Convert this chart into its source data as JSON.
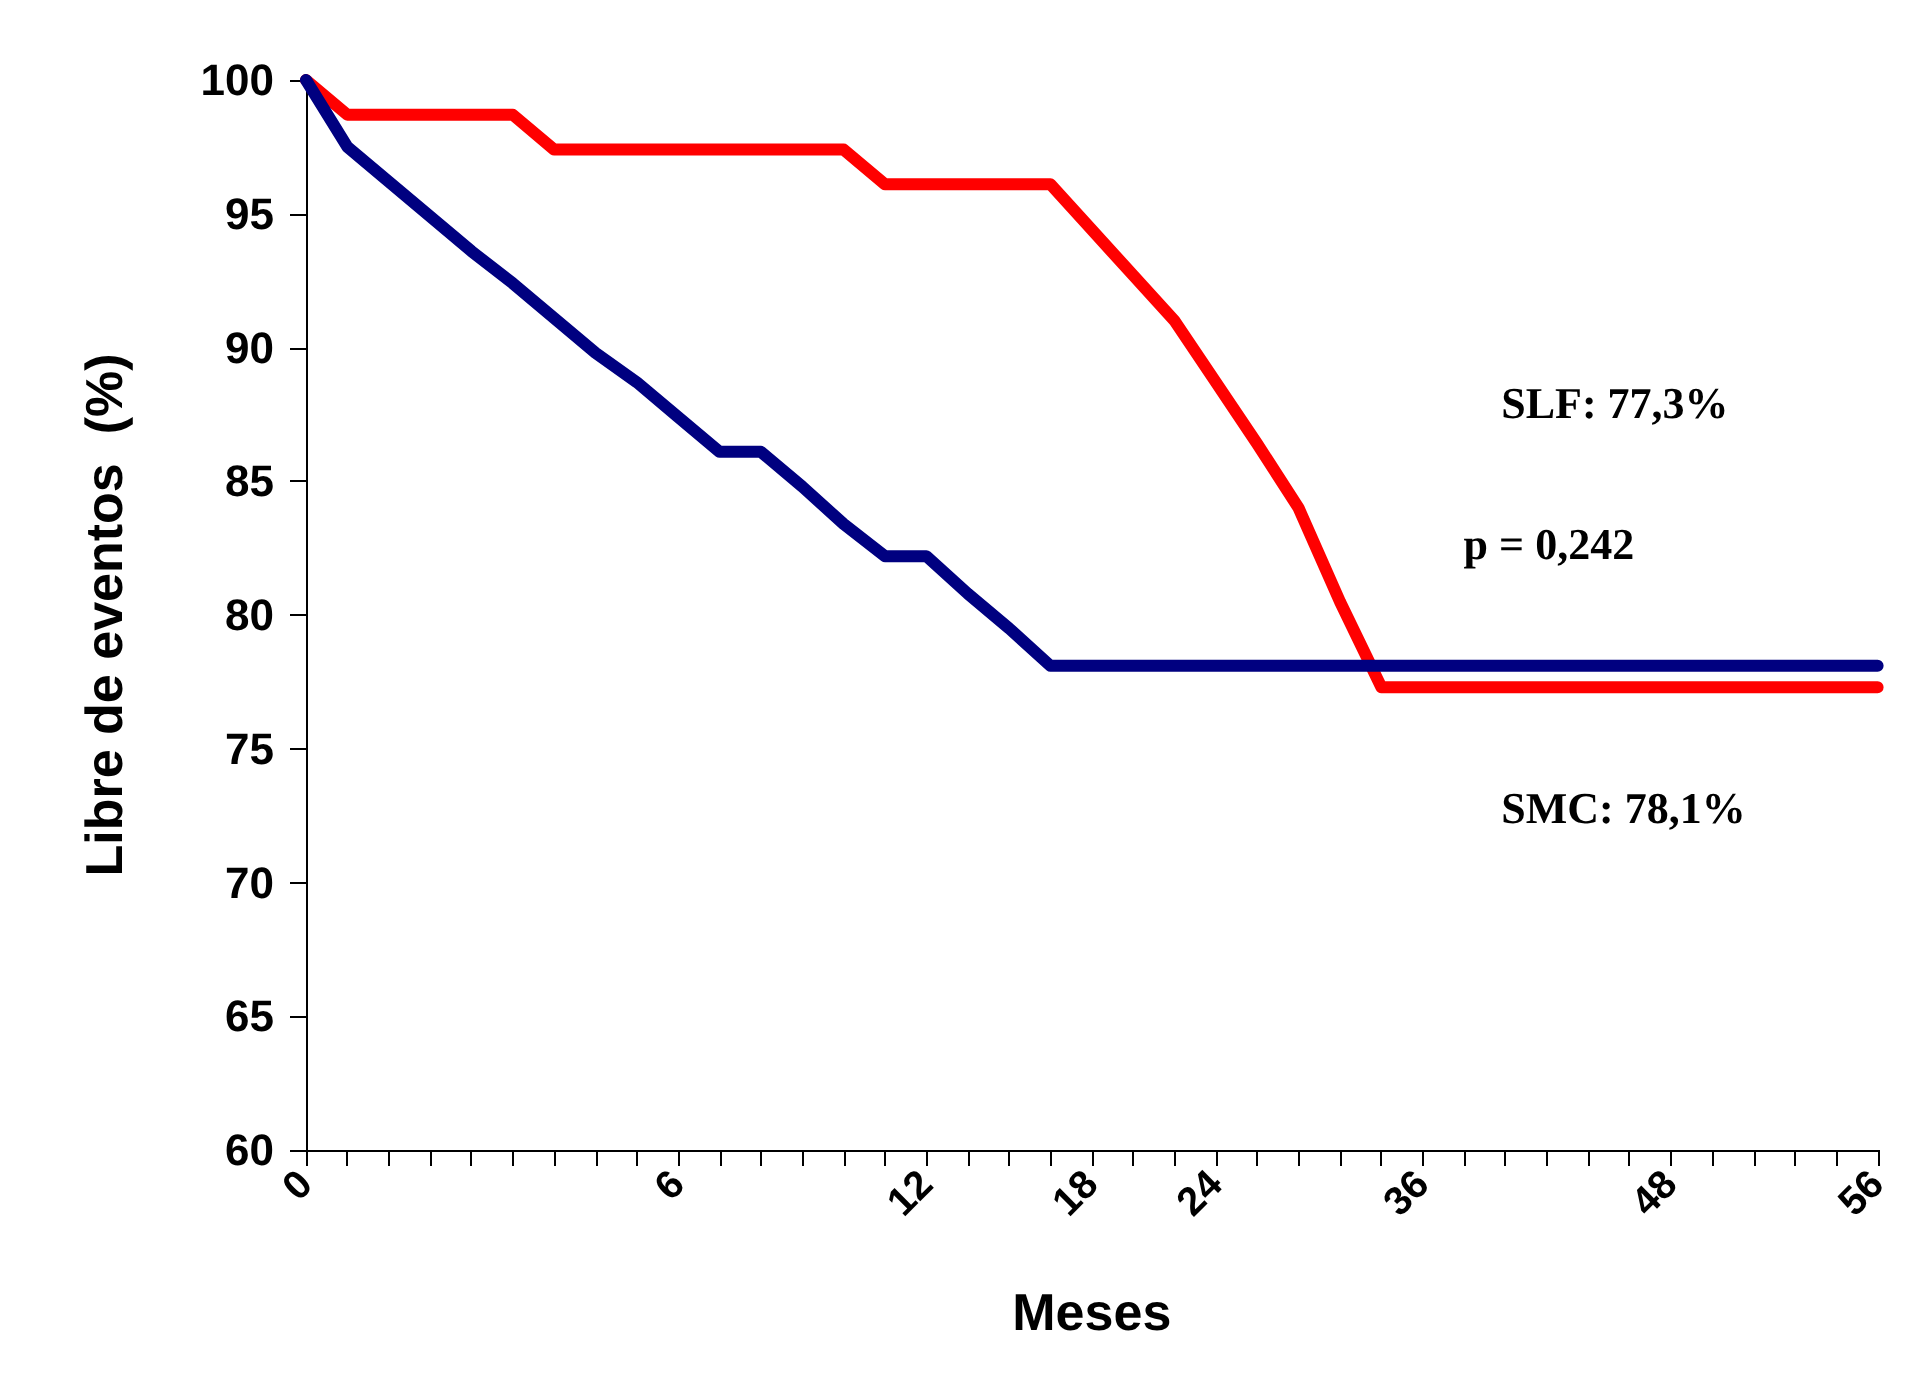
{
  "chart_data": {
    "type": "line",
    "xlabel": "Meses",
    "ylabel": "Libre de eventos  (%)",
    "categories": [
      "0",
      null,
      null,
      null,
      null,
      null,
      null,
      null,
      null,
      "6",
      null,
      null,
      null,
      null,
      null,
      "12",
      null,
      null,
      null,
      "18",
      null,
      null,
      "24",
      null,
      null,
      null,
      null,
      "36",
      null,
      null,
      null,
      null,
      null,
      "48",
      null,
      null,
      null,
      null,
      "56"
    ],
    "series": [
      {
        "color": "#ff0000",
        "values": [
          100,
          98.7,
          98.7,
          98.7,
          98.7,
          98.7,
          97.4,
          97.4,
          97.4,
          97.4,
          97.4,
          97.4,
          97.4,
          97.4,
          96.1,
          96.1,
          96.1,
          96.1,
          96.1,
          94.4,
          92.7,
          91.0,
          88.7,
          86.4,
          84.0,
          80.5,
          77.3,
          77.3,
          77.3,
          77.3,
          77.3,
          77.3,
          77.3,
          77.3,
          77.3,
          77.3,
          77.3,
          77.3,
          77.3
        ]
      },
      {
        "color": "#000080",
        "values": [
          100,
          97.5,
          96.2,
          94.9,
          93.6,
          92.4,
          91.1,
          89.8,
          88.7,
          87.4,
          86.1,
          86.1,
          84.8,
          83.4,
          82.2,
          82.2,
          80.8,
          79.5,
          78.1,
          78.1,
          78.1,
          78.1,
          78.1,
          78.1,
          78.1,
          78.1,
          78.1,
          78.1,
          78.1,
          78.1,
          78.1,
          78.1,
          78.1,
          78.1,
          78.1,
          78.1,
          78.1,
          78.1,
          78.1
        ]
      }
    ],
    "ylim": [
      60,
      100
    ],
    "yticks": [
      60,
      65,
      70,
      75,
      80,
      85,
      90,
      95,
      100
    ],
    "grid": false,
    "marker": "none",
    "line_style": "solid",
    "annotations": [
      "SLF: 77,3%",
      "p = 0,242",
      "SMC: 78,1%"
    ]
  }
}
